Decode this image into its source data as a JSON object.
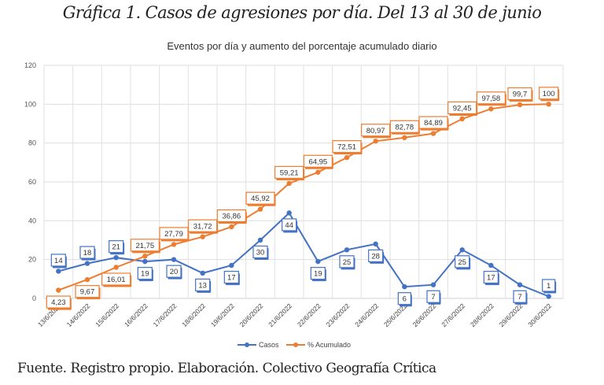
{
  "figure": {
    "title": "Gráfica 1. Casos de agresiones por día. Del 13 al 30 de junio",
    "source": "Fuente. Registro propio. Elaboración. Colectivo Geografía Crítica"
  },
  "chart_data": {
    "type": "line",
    "title": "Eventos por día y aumento del porcentaje acumulado diario",
    "xlabel": "",
    "ylabel": "",
    "ylim": [
      0,
      120
    ],
    "yticks": [
      0,
      20,
      40,
      60,
      80,
      100,
      120
    ],
    "grid": true,
    "legend_position": "bottom",
    "categories": [
      "13/6/2022",
      "14/6/2022",
      "15/6/2022",
      "16/6/2022",
      "17/6/2022",
      "18/6/2022",
      "19/6/2022",
      "20/6/2022",
      "21/6/2022",
      "22/6/2022",
      "23/6/2022",
      "24/6/2022",
      "25/6/2022",
      "26/6/2022",
      "27/6/2022",
      "28/6/2022",
      "29/6/2022",
      "30/6/2022"
    ],
    "series": [
      {
        "name": "Casos",
        "color": "#4472c4",
        "values": [
          14,
          18,
          21,
          19,
          20,
          13,
          17,
          30,
          44,
          19,
          25,
          28,
          6,
          7,
          25,
          17,
          7,
          1
        ],
        "labels": [
          "14",
          "18",
          "21",
          "19",
          "20",
          "13",
          "17",
          "30",
          "44",
          "19",
          "25",
          "28",
          "6",
          "7",
          "25",
          "17",
          "7",
          "1"
        ],
        "label_side": [
          "above",
          "above",
          "above",
          "below",
          "below",
          "below",
          "below",
          "below",
          "below",
          "below",
          "below",
          "below",
          "below",
          "below",
          "below",
          "below",
          "below",
          "above"
        ]
      },
      {
        "name": "% Acumulado",
        "color": "#ed7d31",
        "values": [
          4.23,
          9.67,
          16.01,
          21.75,
          27.79,
          31.72,
          36.86,
          45.92,
          59.21,
          64.95,
          72.51,
          80.97,
          82.78,
          84.89,
          92.45,
          97.58,
          99.7,
          100
        ],
        "labels": [
          "4,23",
          "9,67",
          "16,01",
          "21,75",
          "27,79",
          "31,72",
          "36,86",
          "45,92",
          "59,21",
          "64,95",
          "72,51",
          "80,97",
          "82,78",
          "84,89",
          "92,45",
          "97,58",
          "99,7",
          "100"
        ],
        "label_side": [
          "below",
          "below",
          "below",
          "above",
          "above",
          "above",
          "above",
          "above",
          "above",
          "above",
          "above",
          "above",
          "above",
          "above",
          "above",
          "above",
          "above",
          "above"
        ]
      }
    ]
  }
}
